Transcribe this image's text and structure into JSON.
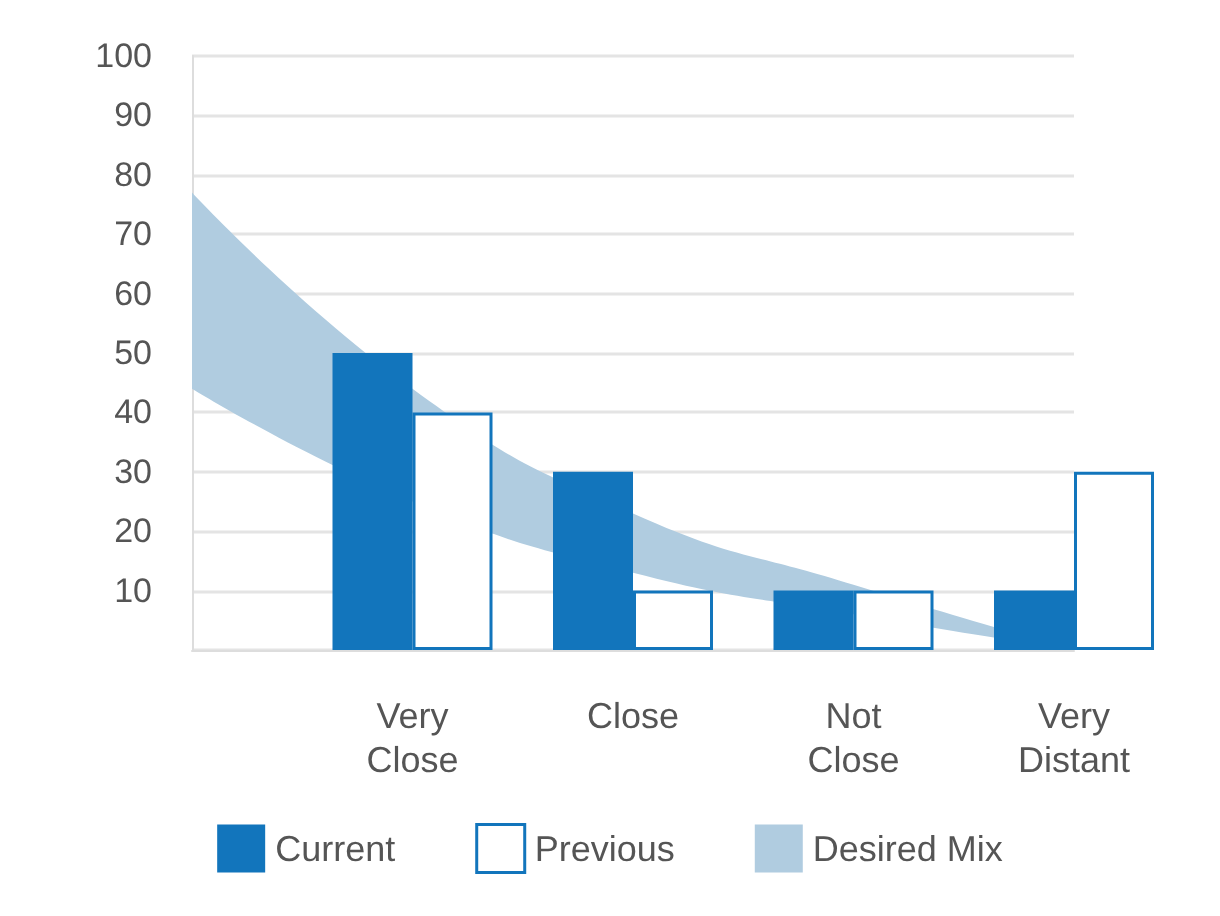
{
  "chart_data": {
    "type": "bar",
    "categories": [
      null,
      "Very\nClose",
      "Close",
      "Not\nClose",
      "Very\nDistant"
    ],
    "series": [
      {
        "name": "Current",
        "color": "#1275bc",
        "values": [
          null,
          50,
          30,
          10,
          10
        ]
      },
      {
        "name": "Previous",
        "color": "#1275bc",
        "values": [
          null,
          40,
          10,
          10,
          30
        ]
      },
      {
        "name": "Desired Mix",
        "type": "area",
        "color": "#b0cce0",
        "values": [
          null,
          null,
          null,
          null,
          null
        ],
        "lower": [
          44,
          25,
          13,
          6,
          0
        ],
        "upper": [
          77,
          44,
          23,
          11,
          0
        ]
      }
    ],
    "ylim": [
      0,
      100
    ],
    "yticks": [
      {
        "value": 0,
        "label": null
      },
      10,
      20,
      30,
      40,
      50,
      60,
      70,
      80,
      90,
      100
    ],
    "grid": "y",
    "legend": "bottom"
  }
}
